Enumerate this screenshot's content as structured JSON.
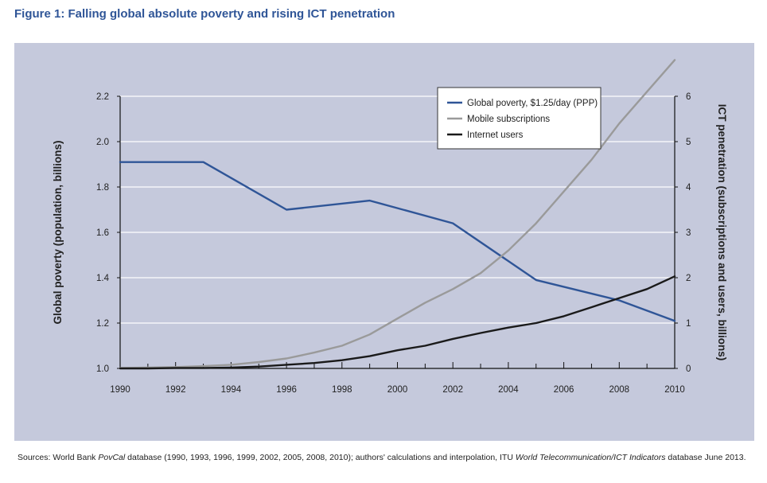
{
  "figure_title": "Figure 1: Falling global absolute poverty and rising ICT penetration",
  "sources": {
    "prefix": "Sources: World Bank ",
    "povcal": "PovCal",
    "middle": " database (1990, 1993, 1996, 1999, 2002, 2005, 2008, 2010); authors' calculations and interpolation, ITU ",
    "itu": "World Telecommunication/ICT Indicators",
    "suffix": " database June 2013."
  },
  "colors": {
    "background": "#c5c9dc",
    "poverty": "#2f5597",
    "mobile": "#9a9a9a",
    "internet": "#1a1a1a",
    "grid": "#ffffff",
    "title": "#2f5597"
  },
  "chart_data": {
    "type": "line",
    "title": "",
    "xlabel": "",
    "ylabel_left": "Global poverty (population, billions)",
    "ylabel_right": "ICT penetration (subscriptions and users, billions)",
    "xlim": [
      1990,
      2010
    ],
    "ylim_left": [
      1.0,
      2.2
    ],
    "ylim_right": [
      0,
      6
    ],
    "x_ticks": [
      "1990",
      "1992",
      "1994",
      "1996",
      "1998",
      "2000",
      "2002",
      "2004",
      "2006",
      "2008",
      "2010"
    ],
    "y_left_ticks": [
      "1.0",
      "1.2",
      "1.4",
      "1.6",
      "1.8",
      "2.0",
      "2.2"
    ],
    "y_right_ticks": [
      "0",
      "1",
      "2",
      "3",
      "4",
      "5",
      "6"
    ],
    "grid": true,
    "legend_position": "top-right",
    "series": [
      {
        "name": "Global poverty, $1.25/day (PPP)",
        "axis": "left",
        "color": "#2f5597",
        "x": [
          1990,
          1993,
          1996,
          1999,
          2002,
          2005,
          2008,
          2010
        ],
        "y": [
          1.91,
          1.91,
          1.7,
          1.74,
          1.64,
          1.39,
          1.3,
          1.21
        ]
      },
      {
        "name": "Mobile subscriptions",
        "axis": "right",
        "color": "#9a9a9a",
        "x": [
          1990,
          1991,
          1992,
          1993,
          1994,
          1995,
          1996,
          1997,
          1998,
          1999,
          2000,
          2001,
          2002,
          2003,
          2004,
          2005,
          2006,
          2007,
          2008,
          2009,
          2010
        ],
        "y": [
          0.01,
          0.02,
          0.03,
          0.05,
          0.08,
          0.14,
          0.22,
          0.35,
          0.5,
          0.75,
          1.1,
          1.45,
          1.75,
          2.1,
          2.6,
          3.2,
          3.9,
          4.6,
          5.4,
          6.1,
          6.8
        ]
      },
      {
        "name": "Internet users",
        "axis": "right",
        "color": "#1a1a1a",
        "x": [
          1990,
          1991,
          1992,
          1993,
          1994,
          1995,
          1996,
          1997,
          1998,
          1999,
          2000,
          2001,
          2002,
          2003,
          2004,
          2005,
          2006,
          2007,
          2008,
          2009,
          2010
        ],
        "y": [
          0.0,
          0.0,
          0.01,
          0.01,
          0.02,
          0.04,
          0.08,
          0.12,
          0.18,
          0.27,
          0.4,
          0.5,
          0.65,
          0.78,
          0.9,
          1.0,
          1.15,
          1.35,
          1.55,
          1.75,
          2.03
        ]
      }
    ]
  }
}
